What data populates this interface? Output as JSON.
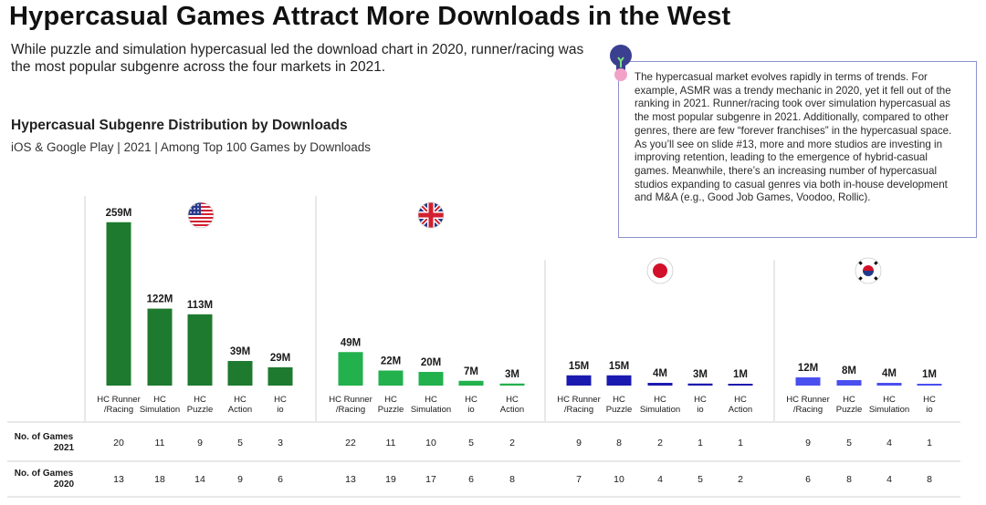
{
  "header": {
    "title": "Hypercasual Games Attract More Downloads in the West",
    "subtitle": "While puzzle and simulation hypercasual led the download chart in 2020, runner/racing was the most popular subgenre across the four markets in 2021."
  },
  "note": {
    "text": "The hypercasual market evolves rapidly in terms of trends. For example, ASMR was a trendy mechanic in 2020, yet it fell out of the ranking in 2021. Runner/racing took over simulation hypercasual as the most popular subgenre in 2021. Additionally, compared to other genres, there are few “forever franchises” in the hypercasual space. As you’ll see on slide #13, more and more studios are investing in improving retention, leading to the emergence of hybrid-casual games. Meanwhile, there’s an increasing number of hypercasual studios expanding to casual genres via both in-house development and M&A (e.g., Good Job Games, Voodoo, Rollic).",
    "icon": "lightbulb-icon"
  },
  "chart_data": {
    "type": "bar",
    "title": "Hypercasual Subgenre Distribution by Downloads",
    "subtitle": "iOS & Google Play | 2021 | Among Top 100 Games by Downloads",
    "value_unit": "M",
    "row_labels": [
      [
        "No. of Games",
        "2021"
      ],
      [
        "No. of Games",
        "2020"
      ]
    ],
    "markets": [
      {
        "flag": "us-flag-icon",
        "color": "#1e7a2e",
        "categories": [
          [
            "HC Runner",
            "/Racing"
          ],
          [
            "HC",
            "Simulation"
          ],
          [
            "HC",
            "Puzzle"
          ],
          [
            "HC",
            "Action"
          ],
          [
            "HC",
            "io"
          ]
        ],
        "values": [
          259,
          122,
          113,
          39,
          29
        ],
        "labels": [
          "259M",
          "122M",
          "113M",
          "39M",
          "29M"
        ],
        "games_2021": [
          20,
          11,
          9,
          5,
          3
        ],
        "games_2020": [
          13,
          18,
          14,
          9,
          6
        ]
      },
      {
        "flag": "uk-flag-icon",
        "color": "#22b14c",
        "categories": [
          [
            "HC Runner",
            "/Racing"
          ],
          [
            "HC",
            "Puzzle"
          ],
          [
            "HC",
            "Simulation"
          ],
          [
            "HC",
            "io"
          ],
          [
            "HC",
            "Action"
          ]
        ],
        "values": [
          49,
          22,
          20,
          7,
          3
        ],
        "labels": [
          "49M",
          "22M",
          "20M",
          "7M",
          "3M"
        ],
        "games_2021": [
          22,
          11,
          10,
          5,
          2
        ],
        "games_2020": [
          13,
          19,
          17,
          6,
          8
        ]
      },
      {
        "flag": "japan-flag-icon",
        "color": "#1a1ab0",
        "categories": [
          [
            "HC Runner",
            "/Racing"
          ],
          [
            "HC",
            "Puzzle"
          ],
          [
            "HC",
            "Simulation"
          ],
          [
            "HC",
            "io"
          ],
          [
            "HC",
            "Action"
          ]
        ],
        "values": [
          15,
          15,
          4,
          3,
          1
        ],
        "labels": [
          "15M",
          "15M",
          "4M",
          "3M",
          "1M"
        ],
        "games_2021": [
          9,
          8,
          2,
          1,
          1
        ],
        "games_2020": [
          7,
          10,
          4,
          5,
          2
        ]
      },
      {
        "flag": "korea-flag-icon",
        "color": "#4a4ff0",
        "categories": [
          [
            "HC Runner",
            "/Racing"
          ],
          [
            "HC",
            "Puzzle"
          ],
          [
            "HC",
            "Simulation"
          ],
          [
            "HC",
            "io"
          ]
        ],
        "values": [
          12,
          8,
          4,
          1
        ],
        "labels": [
          "12M",
          "8M",
          "4M",
          "1M"
        ],
        "games_2021": [
          9,
          5,
          4,
          1
        ],
        "games_2020": [
          6,
          8,
          4,
          8
        ]
      }
    ]
  }
}
